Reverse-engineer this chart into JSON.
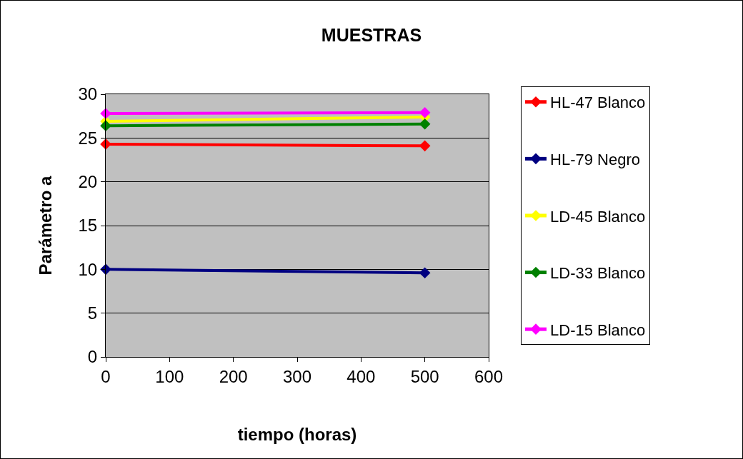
{
  "chart_data": {
    "type": "line",
    "title": "MUESTRAS",
    "xlabel": "tiempo (horas)",
    "ylabel": "Parámetro a",
    "x": [
      0,
      500
    ],
    "series": [
      {
        "name": "HL-47 Blanco",
        "color": "#ff0000",
        "values": [
          24.3,
          24.1
        ]
      },
      {
        "name": "HL-79 Negro",
        "color": "#000080",
        "values": [
          10.0,
          9.6
        ]
      },
      {
        "name": "LD-45 Blanco",
        "color": "#ffff00",
        "values": [
          26.9,
          27.4
        ]
      },
      {
        "name": "LD-33 Blanco",
        "color": "#008000",
        "values": [
          26.4,
          26.6
        ]
      },
      {
        "name": "LD-15 Blanco",
        "color": "#ff00ff",
        "values": [
          27.8,
          27.9
        ]
      }
    ],
    "xlim": [
      0,
      600
    ],
    "xticks": [
      0,
      100,
      200,
      300,
      400,
      500,
      600
    ],
    "ylim": [
      0,
      30
    ],
    "yticks": [
      0,
      5,
      10,
      15,
      20,
      25,
      30
    ],
    "grid": "y",
    "legend": "right",
    "marker": "diamond",
    "line_style": "solid"
  }
}
